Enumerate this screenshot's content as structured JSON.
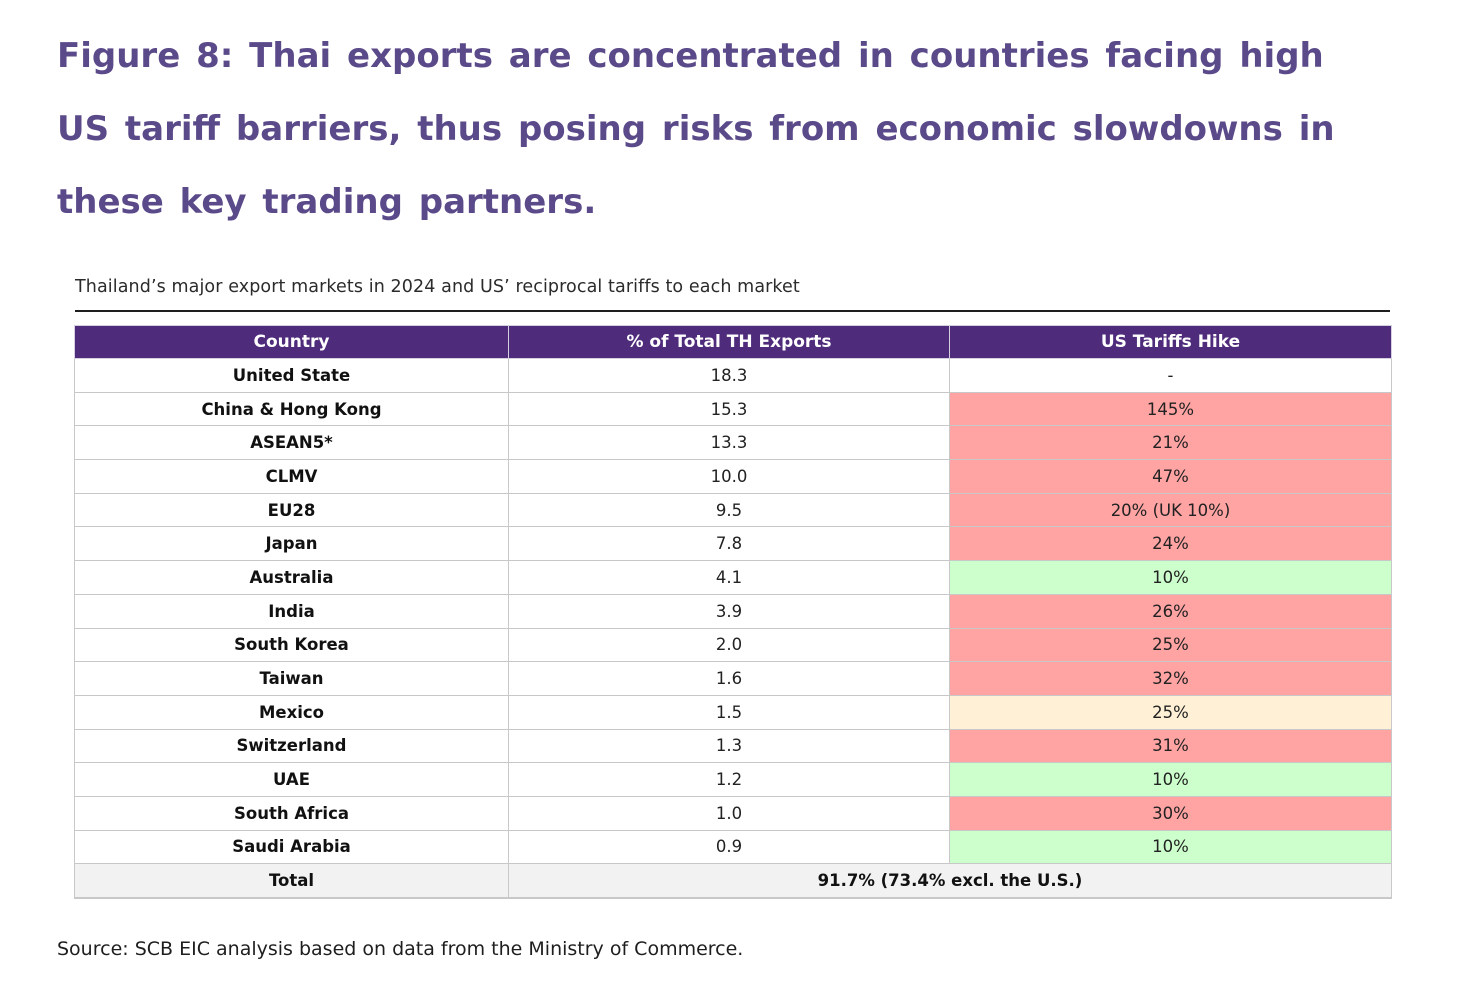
{
  "figure": {
    "title": "Figure 8: Thai exports are concentrated in countries facing high US tariff barriers, thus posing risks from economic slowdowns in these key trading partners."
  },
  "table": {
    "caption": "Thailand’s major export markets in 2024 and US’ reciprocal tariffs to each market",
    "headers": {
      "country": "Country",
      "share": "% of Total TH Exports",
      "tariff": "US Tariffs Hike"
    },
    "colors": {
      "header_bg": "#4f2b7c",
      "high_tariff": "#ffa3a3",
      "low_tariff": "#ccffcc",
      "mid_tariff": "#fff0d6",
      "none": "#ffffff"
    },
    "rows": [
      {
        "country": "United State",
        "share": "18.3",
        "tariff": "-",
        "level": "none"
      },
      {
        "country": "China & Hong Kong",
        "share": "15.3",
        "tariff": "145%",
        "level": "high"
      },
      {
        "country": "ASEAN5*",
        "share": "13.3",
        "tariff": "21%",
        "level": "high"
      },
      {
        "country": "CLMV",
        "share": "10.0",
        "tariff": "47%",
        "level": "high"
      },
      {
        "country": "EU28",
        "share": "9.5",
        "tariff": "20% (UK 10%)",
        "level": "high"
      },
      {
        "country": "Japan",
        "share": "7.8",
        "tariff": "24%",
        "level": "high"
      },
      {
        "country": "Australia",
        "share": "4.1",
        "tariff": "10%",
        "level": "low"
      },
      {
        "country": "India",
        "share": "3.9",
        "tariff": "26%",
        "level": "high"
      },
      {
        "country": "South Korea",
        "share": "2.0",
        "tariff": "25%",
        "level": "high"
      },
      {
        "country": "Taiwan",
        "share": "1.6",
        "tariff": "32%",
        "level": "high"
      },
      {
        "country": "Mexico",
        "share": "1.5",
        "tariff": "25%",
        "level": "mid"
      },
      {
        "country": "Switzerland",
        "share": "1.3",
        "tariff": "31%",
        "level": "high"
      },
      {
        "country": "UAE",
        "share": "1.2",
        "tariff": "10%",
        "level": "low"
      },
      {
        "country": "South Africa",
        "share": "1.0",
        "tariff": "30%",
        "level": "high"
      },
      {
        "country": "Saudi Arabia",
        "share": "0.9",
        "tariff": "10%",
        "level": "low"
      }
    ],
    "total": {
      "label": "Total",
      "value": "91.7% (73.4% excl. the U.S.)"
    }
  },
  "source": "Source: SCB EIC analysis based on data from the Ministry of Commerce."
}
